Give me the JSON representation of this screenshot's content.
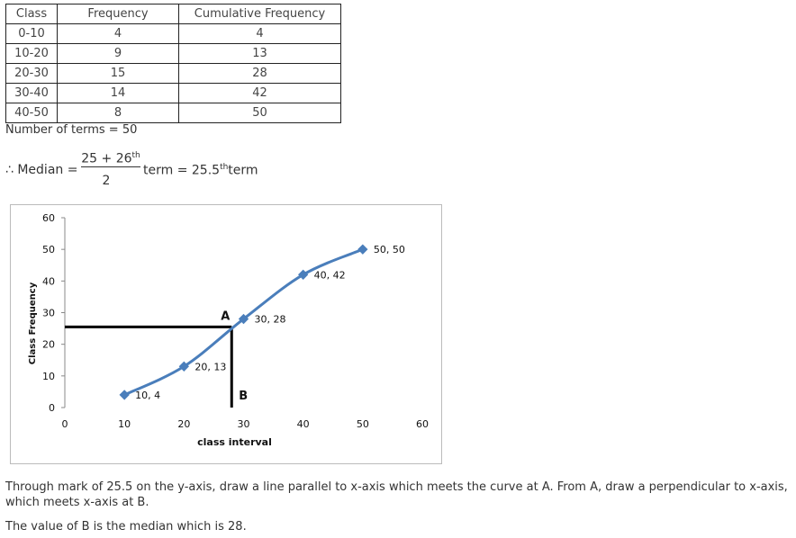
{
  "table": {
    "header": [
      "Class",
      "Frequency",
      "Cumulative Frequency"
    ],
    "rows": [
      [
        "0-10",
        "4",
        "4"
      ],
      [
        "10-20",
        "9",
        "13"
      ],
      [
        "20-30",
        "15",
        "28"
      ],
      [
        "30-40",
        "14",
        "42"
      ],
      [
        "40-50",
        "8",
        "50"
      ]
    ]
  },
  "note": "Number of terms = 50",
  "formula": {
    "prefix": "∴ Median =",
    "numerator": "25 + 26",
    "numerator_sup": "th",
    "denominator": "2",
    "result": "term = 25.5",
    "result_sup": "th",
    "suffix": "term"
  },
  "chart_data": {
    "type": "line",
    "x": [
      10,
      20,
      30,
      40,
      50
    ],
    "values": [
      4,
      13,
      28,
      42,
      50
    ],
    "value_labels": [
      "10, 4",
      "20, 13",
      "30, 28",
      "40, 42",
      "50, 50"
    ],
    "color": "#4a7ebb",
    "xlabel": "class interval",
    "ylabel": "Class Frequency",
    "xlim": [
      0,
      60
    ],
    "ylim": [
      0,
      60
    ],
    "xticks": [
      0,
      10,
      20,
      30,
      40,
      50,
      60
    ],
    "yticks": [
      0,
      10,
      20,
      30,
      40,
      50,
      60
    ],
    "construction": {
      "y": 25.5,
      "x": 28,
      "point_label": "A",
      "foot_label": "B"
    }
  },
  "paragraphs": [
    "Through mark of 25.5 on the y-axis, draw a line parallel to x-axis which meets the curve at A. From A, draw a perpendicular to x-axis, which meets x-axis at B.",
    "The value of B is the median which is 28."
  ]
}
